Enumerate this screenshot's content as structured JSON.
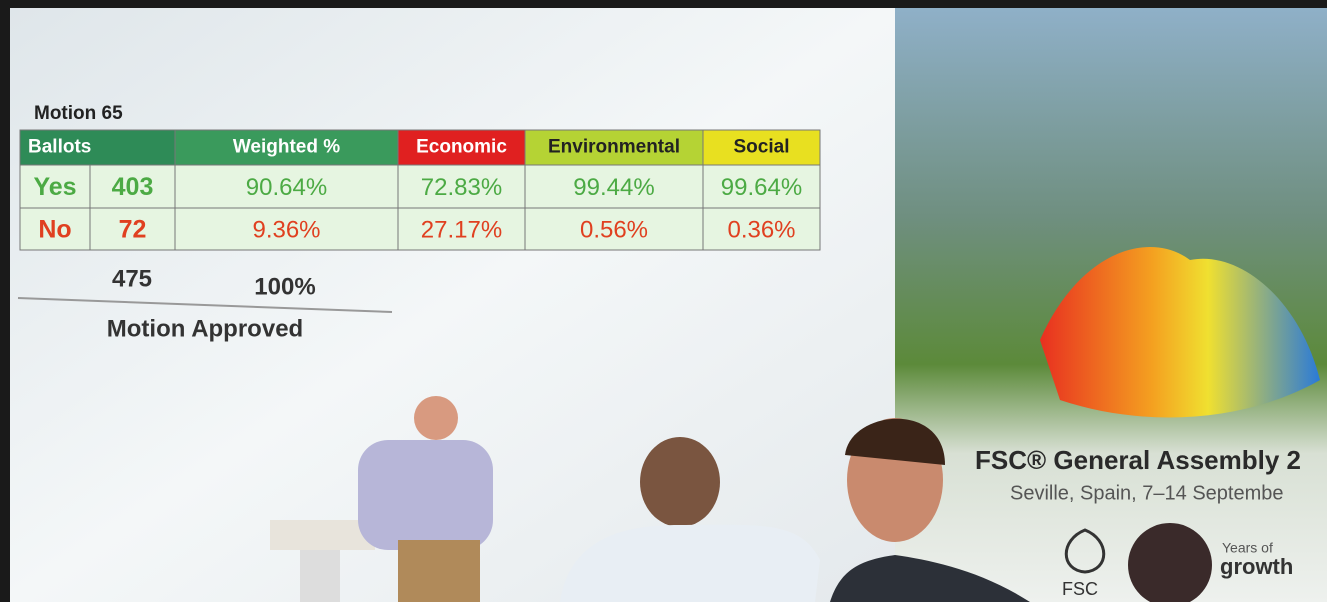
{
  "slide": {
    "title": "Motion 65",
    "table": {
      "header": [
        "Ballots",
        "Weighted %",
        "Economic",
        "Environmental",
        "Social"
      ],
      "rows": [
        [
          "Yes",
          "403",
          "90.64%",
          "72.83%",
          "99.44%",
          "99.64%"
        ],
        [
          "No",
          "72",
          "9.36%",
          "27.17%",
          "0.56%",
          "0.36%"
        ]
      ],
      "total": [
        "475",
        "100%"
      ]
    },
    "result": "Motion Approved"
  },
  "banner": {
    "title": "FSC® General Assembly 2",
    "subtitle": "Seville, Spain, 7–14 Septembe",
    "logo": "FSC",
    "tagline": [
      "Years of",
      "growth"
    ]
  }
}
